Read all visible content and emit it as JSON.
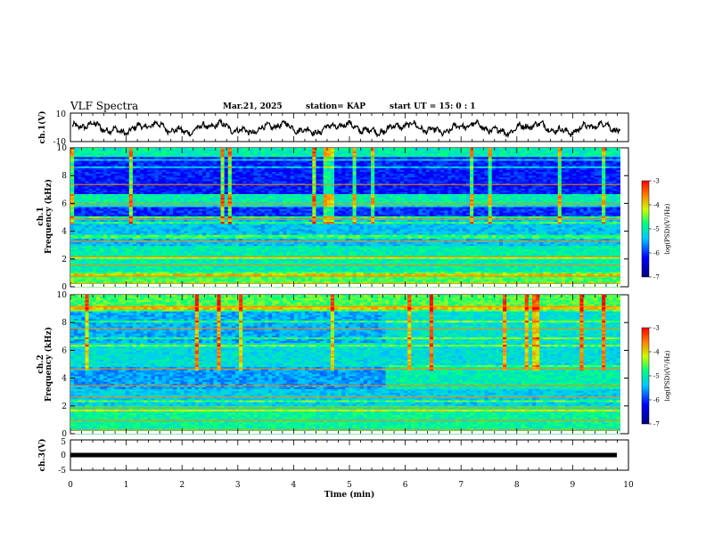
{
  "header": {
    "title": "VLF Spectra",
    "date": "Mar.21, 2025",
    "station": "station= KAP",
    "start_time": "start  UT =   15: 0  : 1"
  },
  "chart_data": [
    {
      "type": "line",
      "name": "ch1-waveform",
      "ylabel": "ch.1(V)",
      "ylim": [
        -10,
        10
      ],
      "yticks": [
        "10",
        "-10"
      ],
      "xlim": [
        0,
        10
      ],
      "x_end": 9.85,
      "style": "noisy oscillating trace around 0 V, amplitude about ±4 V"
    },
    {
      "type": "heatmap",
      "name": "ch1-spectrogram",
      "ylabel": "ch.1\nFrequency (kHz)",
      "ylabel_lines": [
        "ch.1",
        "Frequency (kHz)"
      ],
      "ylim": [
        0,
        10
      ],
      "yticks": [
        "0",
        "2",
        "4",
        "6",
        "8",
        "10"
      ],
      "xlim": [
        0,
        10
      ],
      "x_end": 9.85,
      "colorbar": {
        "label": "log(PSD)(V²/Hz)",
        "range": [
          -7,
          -3
        ],
        "ticks": [
          "-3",
          "-4",
          "-5",
          "-6",
          "-7"
        ]
      }
    },
    {
      "type": "heatmap",
      "name": "ch2-spectrogram",
      "ylabel": "ch.2\nFrequency (kHz)",
      "ylabel_lines": [
        "ch.2",
        "Frequency (kHz)"
      ],
      "ylim": [
        0,
        10
      ],
      "yticks": [
        "0",
        "2",
        "4",
        "6",
        "8",
        "10"
      ],
      "xlim": [
        0,
        10
      ],
      "x_end": 9.85,
      "colorbar": {
        "label": "log(PSD)(V²/Hz)",
        "range": [
          -7,
          -3
        ],
        "ticks": [
          "-3",
          "-4",
          "-5",
          "-6",
          "-7"
        ]
      }
    },
    {
      "type": "line",
      "name": "ch3-waveform",
      "ylabel": "ch.3(V)",
      "ylim": [
        -5,
        5
      ],
      "yticks": [
        "5",
        "0",
        "-5"
      ],
      "xlim": [
        0,
        10
      ],
      "x_end": 9.85,
      "style": "flat thick line near -1 V"
    }
  ],
  "xaxis": {
    "label": "Time  (min)",
    "ticks": [
      "0",
      "1",
      "2",
      "3",
      "4",
      "5",
      "6",
      "7",
      "8",
      "9",
      "10"
    ]
  }
}
